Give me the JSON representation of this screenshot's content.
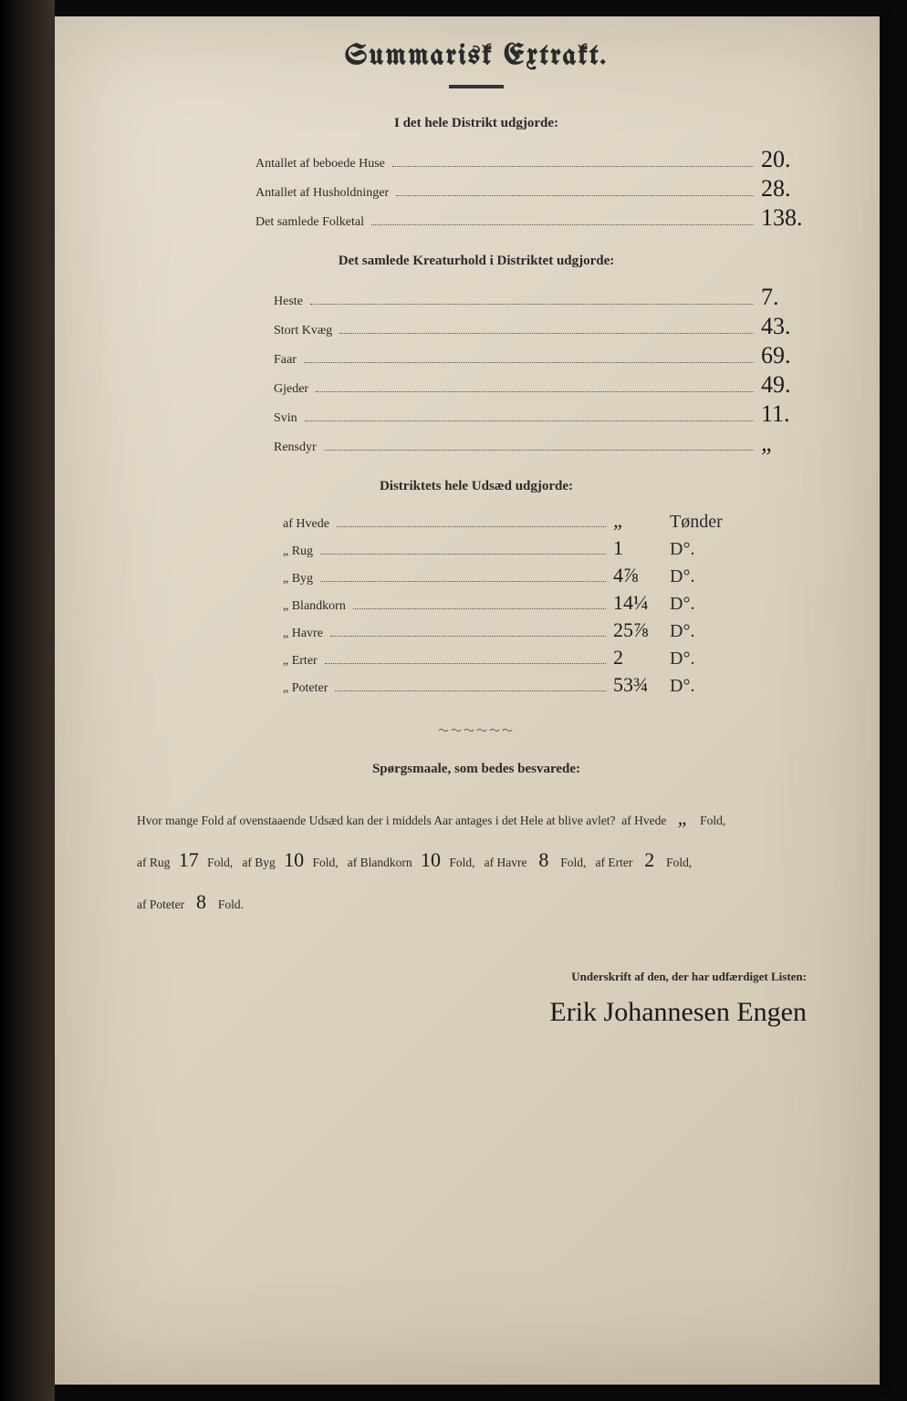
{
  "title": "Summarisk Extrakt.",
  "section1": {
    "heading": "I det hele Distrikt udgjorde:",
    "rows": [
      {
        "label": "Antallet af beboede Huse",
        "value": "20."
      },
      {
        "label": "Antallet af Husholdninger",
        "value": "28."
      },
      {
        "label": "Det samlede Folketal",
        "value": "138."
      }
    ]
  },
  "section2": {
    "heading": "Det samlede Kreaturhold i Distriktet udgjorde:",
    "rows": [
      {
        "label": "Heste",
        "value": "7."
      },
      {
        "label": "Stort Kvæg",
        "value": "43."
      },
      {
        "label": "Faar",
        "value": "69."
      },
      {
        "label": "Gjeder",
        "value": "49."
      },
      {
        "label": "Svin",
        "value": "11."
      },
      {
        "label": "Rensdyr",
        "value": "„"
      }
    ]
  },
  "section3": {
    "heading": "Distriktets hele Udsæd udgjorde:",
    "rows": [
      {
        "label": "af Hvede",
        "value": "„",
        "unit": "Tønder"
      },
      {
        "label": "„ Rug",
        "value": "1",
        "unit": "D°."
      },
      {
        "label": "„ Byg",
        "value": "4⅞",
        "unit": "D°."
      },
      {
        "label": "„ Blandkorn",
        "value": "14¼",
        "unit": "D°."
      },
      {
        "label": "„ Havre",
        "value": "25⅞",
        "unit": "D°."
      },
      {
        "label": "„ Erter",
        "value": "2",
        "unit": "D°."
      },
      {
        "label": "„ Poteter",
        "value": "53¾",
        "unit": "D°."
      }
    ]
  },
  "questions": {
    "heading": "Spørgsmaale, som bedes besvarede:",
    "lead": "Hvor mange Fold af ovenstaaende Udsæd kan der i middels Aar antages i det Hele at blive avlet?",
    "items": [
      {
        "label": "af Hvede",
        "value": "„",
        "suffix": "Fold,"
      },
      {
        "label": "af Rug",
        "value": "17",
        "suffix": "Fold,"
      },
      {
        "label": "af Byg",
        "value": "10",
        "suffix": "Fold,"
      },
      {
        "label": "af Blandkorn",
        "value": "10",
        "suffix": "Fold,"
      },
      {
        "label": "af Havre",
        "value": "8",
        "suffix": "Fold,"
      },
      {
        "label": "af Erter",
        "value": "2",
        "suffix": "Fold,"
      },
      {
        "label": "af Poteter",
        "value": "8",
        "suffix": "Fold."
      }
    ]
  },
  "signature": {
    "label": "Underskrift af den, der har udfærdiget Listen:",
    "name": "Erik Johannesen Engen"
  },
  "colors": {
    "paper": "#ddd4c2",
    "ink": "#2a2a2a",
    "hand_ink": "#1a1a1a",
    "background": "#1a1a1a"
  }
}
